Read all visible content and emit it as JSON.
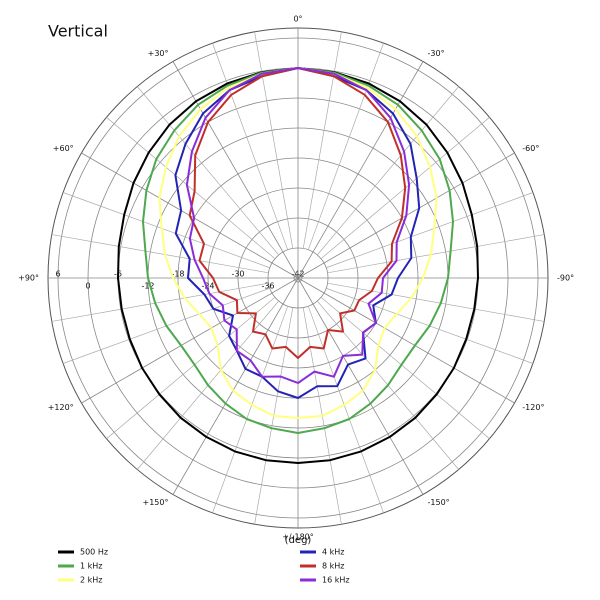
{
  "chart_data": {
    "type": "polar",
    "title": "Vertical",
    "x_label": "(deg)",
    "xlim": [
      -180,
      180
    ],
    "x": [
      -180,
      -170,
      -160,
      -150,
      -140,
      -130,
      -120,
      -110,
      -100,
      -90,
      -80,
      -70,
      -60,
      -50,
      -40,
      -30,
      -20,
      -10,
      0,
      10,
      20,
      30,
      40,
      50,
      60,
      70,
      80,
      90,
      100,
      110,
      120,
      130,
      140,
      150,
      160,
      170
    ],
    "xticks": [
      {
        "value": 0,
        "label": "0°"
      },
      {
        "value": -30,
        "label": "-30°"
      },
      {
        "value": -60,
        "label": "-60°"
      },
      {
        "value": -90,
        "label": "-90°"
      },
      {
        "value": -120,
        "label": "-120°"
      },
      {
        "value": -150,
        "label": "-150°"
      },
      {
        "value": 180,
        "label": "+/-180°"
      },
      {
        "value": 150,
        "label": "+150°"
      },
      {
        "value": 120,
        "label": "+120°"
      },
      {
        "value": 90,
        "label": "+90°"
      },
      {
        "value": 60,
        "label": "+60°"
      },
      {
        "value": 30,
        "label": "+30°"
      }
    ],
    "rlim": [
      -42,
      8
    ],
    "rticks": [
      -42,
      -36,
      -30,
      -24,
      -18,
      -12,
      -6,
      0,
      6
    ],
    "grid": true,
    "legend": "bottom",
    "series": [
      {
        "name": "500 Hz",
        "color": "#000000",
        "values": [
          -5,
          -5,
          -5.1,
          -5.3,
          -5.5,
          -5.8,
          -6,
          -6.2,
          -6.2,
          -6,
          -5.6,
          -5,
          -4,
          -3,
          -2,
          -1.2,
          -0.6,
          -0.2,
          0,
          -0.2,
          -0.6,
          -1.2,
          -2,
          -3,
          -4,
          -5,
          -5.6,
          -6,
          -6.2,
          -6.2,
          -6,
          -5.8,
          -5.5,
          -5.3,
          -5.1,
          -5
        ]
      },
      {
        "name": "1 kHz",
        "color": "#4ea84e",
        "values": [
          -11,
          -11.5,
          -12,
          -13,
          -14,
          -15,
          -15,
          -14,
          -13,
          -12,
          -11,
          -9,
          -7,
          -5,
          -3.5,
          -2,
          -1,
          -0.3,
          0,
          -0.3,
          -1,
          -2,
          -3.5,
          -5,
          -7,
          -9,
          -11,
          -12,
          -13,
          -14,
          -15,
          -15,
          -14,
          -13,
          -12,
          -11.5
        ]
      },
      {
        "name": "2 kHz",
        "color": "#ffff80",
        "values": [
          -14,
          -14,
          -15,
          -16,
          -18,
          -21,
          -22,
          -21,
          -19,
          -17,
          -15,
          -13,
          -10,
          -7.5,
          -5,
          -3,
          -1.5,
          -0.5,
          0,
          -0.5,
          -1.5,
          -3,
          -5,
          -7.5,
          -10,
          -13,
          -15,
          -17,
          -19,
          -21,
          -22,
          -21,
          -18,
          -16,
          -15,
          -14
        ]
      },
      {
        "name": "4 kHz",
        "color": "#2323b4",
        "values": [
          -18,
          -20,
          -19,
          -22,
          -21,
          -25,
          -24,
          -26,
          -23,
          -22,
          -19,
          -18,
          -14,
          -11,
          -7,
          -4,
          -2,
          -1,
          0,
          -1,
          -2,
          -4,
          -7,
          -10,
          -15,
          -16,
          -20,
          -20,
          -23,
          -24,
          -27,
          -24,
          -23,
          -21,
          -21,
          -19
        ]
      },
      {
        "name": "8 kHz",
        "color": "#c0302a",
        "values": [
          -26,
          -28,
          -27,
          -30,
          -28,
          -31,
          -29,
          -29,
          -27,
          -26,
          -23,
          -22,
          -18,
          -14,
          -10,
          -6,
          -3,
          -1,
          0,
          -1,
          -3,
          -6,
          -10,
          -15,
          -17,
          -22,
          -22,
          -25,
          -26,
          -29,
          -28,
          -31,
          -28,
          -29,
          -27,
          -28
        ]
      },
      {
        "name": "16 kHz",
        "color": "#8b2cd6",
        "values": [
          -21,
          -23,
          -21,
          -24,
          -22,
          -25,
          -24,
          -27,
          -25,
          -25,
          -22,
          -21,
          -17,
          -13,
          -9,
          -5,
          -2,
          -0.5,
          0,
          -0.5,
          -2,
          -5,
          -9,
          -13,
          -18,
          -19,
          -21,
          -23,
          -24,
          -26,
          -25,
          -26,
          -23,
          -23,
          -21,
          -22
        ]
      }
    ]
  }
}
